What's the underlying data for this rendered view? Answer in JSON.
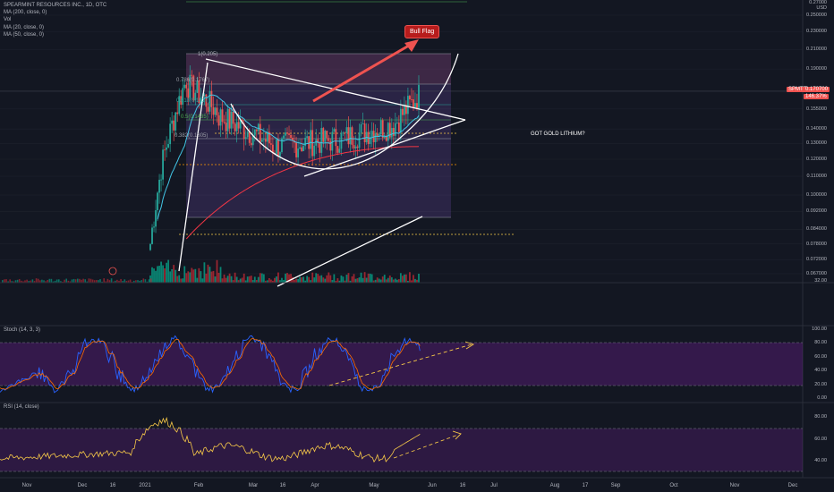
{
  "header": {
    "symbol_line": "SPEARMINT RESOURCES INC., 1D, OTC",
    "indicators": [
      "MA (200, close, 0)",
      "Vol",
      "MA (20, close, 0)",
      "MA (50, close, 0)"
    ]
  },
  "price_axis": {
    "currency": "USD",
    "ticks": [
      "0.250000",
      "0.230000",
      "0.210000",
      "0.190000",
      "0.170000",
      "0.155000",
      "0.140000",
      "0.130000",
      "0.120000",
      "0.110000",
      "0.100000",
      "0.092000",
      "0.084000",
      "0.078000",
      "0.072000",
      "0.067000"
    ],
    "last_price": "0.170700",
    "symbol_tag": "SPMTF",
    "change_tag": "146.37%",
    "vol_ticks": [
      "32.00"
    ],
    "top_partial": "0.27000"
  },
  "fib_labels": [
    "1(0.205)",
    "0.786(0.1767)",
    "0.618(0.1517)",
    "0.5(0.1435)",
    "0.382(0.1305)"
  ],
  "annotations": {
    "bull_flag": "Bull Flag",
    "note": "GOT GOLD LITHIUM?"
  },
  "stoch": {
    "title": "Stoch (14, 3, 3)",
    "ticks": [
      "100.00",
      "80.00",
      "60.00",
      "40.00",
      "20.00",
      "0.00"
    ]
  },
  "rsi": {
    "title": "RSI (14, close)",
    "ticks": [
      "80.00",
      "60.00",
      "40.00"
    ]
  },
  "time_axis": [
    "Nov",
    "Dec",
    "16",
    "2021",
    "Feb",
    "Mar",
    "16",
    "Apr",
    "May",
    "Jun",
    "16",
    "Jul",
    "Aug",
    "17",
    "Sep",
    "Oct",
    "Nov",
    "Dec"
  ],
  "colors": {
    "background": "#131722",
    "up": "#26a69a",
    "down": "#ef5350",
    "vol_up": "#089981",
    "ma200": "#f23645",
    "ma20": "#42c6e6",
    "fib_zone": "#7e57c2",
    "osc_band": "#7b1fa2"
  },
  "chart_data": {
    "type": "candlestick",
    "title": "SPEARMINT RESOURCES INC., 1D, OTC",
    "y_unit": "USD",
    "scale": "log",
    "ylim": [
      0.064,
      0.27
    ],
    "x": [
      "Nov",
      "Dec",
      "16",
      "2021",
      "Feb",
      "Mar",
      "16",
      "Apr",
      "May",
      "Jun",
      "16",
      "Jul",
      "Aug",
      "17",
      "Sep",
      "Oct",
      "Nov",
      "Dec"
    ],
    "last_price": 0.1707,
    "change_percent": 146.37,
    "fibonacci_levels": [
      {
        "ratio": 1,
        "price": 0.205
      },
      {
        "ratio": 0.786,
        "price": 0.1767
      },
      {
        "ratio": 0.618,
        "price": 0.1517
      },
      {
        "ratio": 0.5,
        "price": 0.1435
      },
      {
        "ratio": 0.382,
        "price": 0.1305
      }
    ],
    "stoch": {
      "params": "14, 3, 3",
      "ylim": [
        0,
        100
      ],
      "band": [
        20,
        80
      ]
    },
    "rsi": {
      "params": "14, close",
      "ylim": [
        30,
        90
      ],
      "band": [
        30,
        70
      ]
    }
  }
}
